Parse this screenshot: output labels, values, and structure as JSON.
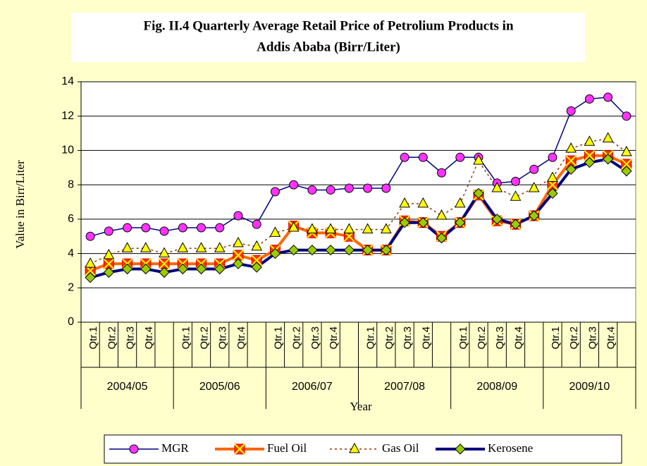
{
  "chart_data": {
    "type": "line",
    "title": "Fig. II.4 Quarterly Average Retail Price of Petrolium Products in",
    "title_line2": "Addis Ababa (Birr/Liter)",
    "x_label": "Year",
    "y_label": "Value in Birr/Liter",
    "categories": [
      "Qtr.1",
      "Qtr.2",
      "Qtr.3",
      "Qtr.4",
      null,
      "Qtr.1",
      "Qtr.2",
      "Qtr.3",
      "Qtr.4",
      null,
      "Qtr.1",
      "Qtr.2",
      "Qtr.3",
      "Qtr.4",
      null,
      "Qtr.1",
      "Qtr.2",
      "Qtr.3",
      "Qtr.4",
      null,
      "Qtr.1",
      "Qtr.2",
      "Qtr.3",
      "Qtr.4",
      null,
      "Qtr.1",
      "Qtr.2",
      "Qtr.3",
      "Qtr.4",
      null
    ],
    "category_groups": [
      "2004/05",
      "2005/06",
      "2006/07",
      "2007/08",
      "2008/09",
      "2009/10"
    ],
    "ylim": [
      0,
      14
    ],
    "yticks": [
      0,
      2,
      4,
      6,
      8,
      10,
      12,
      14
    ],
    "grid": true,
    "legend": "bottom",
    "series": [
      {
        "name": "MGR",
        "color": "#000080",
        "marker": "circle",
        "marker_color": "#ff33ff",
        "line_width": 1.5,
        "dashed": false,
        "values": [
          5.0,
          5.3,
          5.5,
          5.5,
          5.3,
          5.5,
          5.5,
          5.5,
          6.2,
          5.7,
          7.6,
          8.0,
          7.7,
          7.7,
          7.8,
          7.8,
          7.8,
          9.6,
          9.6,
          8.7,
          9.6,
          9.6,
          8.1,
          8.2,
          8.9,
          9.6,
          12.3,
          13.0,
          13.1,
          12.0
        ]
      },
      {
        "name": "Fuel Oil",
        "color": "#ff6600",
        "marker": "square-x",
        "marker_color": "#ff3300",
        "line_width": 4,
        "dashed": false,
        "values": [
          3.0,
          3.4,
          3.4,
          3.4,
          3.4,
          3.4,
          3.4,
          3.4,
          3.9,
          3.6,
          4.2,
          5.6,
          5.2,
          5.2,
          5.0,
          4.2,
          4.2,
          5.9,
          5.8,
          5.0,
          5.8,
          7.4,
          5.9,
          5.7,
          6.2,
          8.0,
          9.4,
          9.7,
          9.7,
          9.2
        ]
      },
      {
        "name": "Gas Oil",
        "color": "#993300",
        "marker": "triangle",
        "marker_color": "#ffff00",
        "line_width": 1.5,
        "dashed": true,
        "values": [
          3.4,
          3.9,
          4.3,
          4.3,
          4.0,
          4.3,
          4.3,
          4.3,
          4.6,
          4.4,
          5.2,
          5.5,
          5.4,
          5.4,
          5.4,
          5.4,
          5.4,
          6.9,
          6.9,
          6.2,
          6.9,
          9.4,
          7.8,
          7.3,
          7.8,
          8.4,
          10.1,
          10.5,
          10.7,
          9.9
        ]
      },
      {
        "name": "Kerosene",
        "color": "#000080",
        "marker": "diamond",
        "marker_color": "#99cc00",
        "line_width": 4,
        "dashed": false,
        "values": [
          2.6,
          2.9,
          3.1,
          3.1,
          2.9,
          3.1,
          3.1,
          3.1,
          3.4,
          3.2,
          4.0,
          4.2,
          4.2,
          4.2,
          4.2,
          4.2,
          4.2,
          5.8,
          5.8,
          4.9,
          5.8,
          7.5,
          6.0,
          5.7,
          6.2,
          7.5,
          8.9,
          9.3,
          9.5,
          8.8
        ]
      }
    ]
  }
}
